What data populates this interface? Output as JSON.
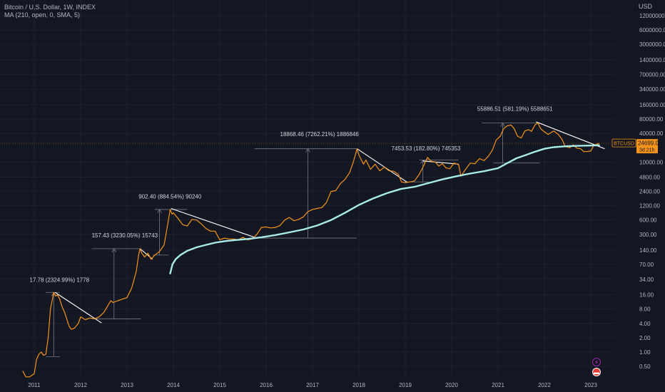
{
  "legend": {
    "title": "Bitcoin / U.S. Dollar, 1W, INDEX",
    "indicator": "MA (210, open, 0, SMA, 5)"
  },
  "price_axis": {
    "currency": "USD"
  },
  "symbol_label": {
    "symbol": "BTCUSD",
    "price": "24699.03",
    "countdown": "3d 21h"
  },
  "colors": {
    "background": "#131722",
    "price_line": "#f7931a",
    "ma_line": "#a8ece9",
    "trendline": "#ffffff",
    "measure": "#787b86",
    "axis_text": "#b2b5be",
    "grid": "#1e222d"
  },
  "badges": {
    "flash": "flash-icon",
    "flag": "flag-icon"
  },
  "chart_data": {
    "type": "line",
    "yscale": "log",
    "ylim": [
      0.3,
      20000000
    ],
    "xlim": [
      2010.8,
      2023.3
    ],
    "y_ticks": [
      {
        "v": 12000000,
        "label": "12000000.00"
      },
      {
        "v": 6000000,
        "label": "6000000.00"
      },
      {
        "v": 3000000,
        "label": "3000000.00"
      },
      {
        "v": 1400000,
        "label": "1400000.00"
      },
      {
        "v": 700000,
        "label": "700000.00"
      },
      {
        "v": 340000,
        "label": "340000.00"
      },
      {
        "v": 160000,
        "label": "160000.00"
      },
      {
        "v": 80000,
        "label": "80000.00"
      },
      {
        "v": 40000,
        "label": "40000.00"
      },
      {
        "v": 10000,
        "label": "10000.00"
      },
      {
        "v": 4800,
        "label": "4800.00"
      },
      {
        "v": 2400,
        "label": "2400.00"
      },
      {
        "v": 1200,
        "label": "1200.00"
      },
      {
        "v": 600,
        "label": "600.00"
      },
      {
        "v": 300,
        "label": "300.00"
      },
      {
        "v": 140,
        "label": "140.00"
      },
      {
        "v": 70,
        "label": "70.00"
      },
      {
        "v": 34,
        "label": "34.00"
      },
      {
        "v": 16,
        "label": "16.00"
      },
      {
        "v": 8,
        "label": "8.00"
      },
      {
        "v": 4,
        "label": "4.00"
      },
      {
        "v": 2,
        "label": "2.00"
      },
      {
        "v": 1,
        "label": "1.00"
      },
      {
        "v": 0.5,
        "label": "0.50"
      }
    ],
    "x_ticks": [
      {
        "v": 2011,
        "label": "2011"
      },
      {
        "v": 2012,
        "label": "2012"
      },
      {
        "v": 2013,
        "label": "2013"
      },
      {
        "v": 2014,
        "label": "2014"
      },
      {
        "v": 2015,
        "label": "2015"
      },
      {
        "v": 2016,
        "label": "2016"
      },
      {
        "v": 2017,
        "label": "2017"
      },
      {
        "v": 2018,
        "label": "2018"
      },
      {
        "v": 2019,
        "label": "2019"
      },
      {
        "v": 2020,
        "label": "2020"
      },
      {
        "v": 2021,
        "label": "2021"
      },
      {
        "v": 2022,
        "label": "2022"
      },
      {
        "v": 2023,
        "label": "2023"
      }
    ],
    "current_price": 24699.03,
    "series": [
      {
        "type": "price",
        "points": [
          [
            2010.75,
            0.4
          ],
          [
            2010.82,
            0.3
          ],
          [
            2010.9,
            0.3
          ],
          [
            2011.0,
            0.35
          ],
          [
            2011.05,
            0.7
          ],
          [
            2011.1,
            0.9
          ],
          [
            2011.15,
            1.0
          ],
          [
            2011.2,
            0.85
          ],
          [
            2011.25,
            0.9
          ],
          [
            2011.3,
            2.0
          ],
          [
            2011.35,
            8
          ],
          [
            2011.42,
            18
          ],
          [
            2011.46,
            15
          ],
          [
            2011.5,
            16
          ],
          [
            2011.55,
            13
          ],
          [
            2011.6,
            9
          ],
          [
            2011.65,
            7
          ],
          [
            2011.7,
            5
          ],
          [
            2011.75,
            3.5
          ],
          [
            2011.8,
            3.0
          ],
          [
            2011.87,
            3.2
          ],
          [
            2011.95,
            4.0
          ],
          [
            2012.0,
            5.5
          ],
          [
            2012.1,
            4.8
          ],
          [
            2012.2,
            5.2
          ],
          [
            2012.3,
            5.0
          ],
          [
            2012.4,
            5.5
          ],
          [
            2012.5,
            6.8
          ],
          [
            2012.6,
            10
          ],
          [
            2012.65,
            12
          ],
          [
            2012.7,
            11
          ],
          [
            2012.8,
            12
          ],
          [
            2012.9,
            13
          ],
          [
            2013.0,
            14
          ],
          [
            2013.1,
            22
          ],
          [
            2013.2,
            50
          ],
          [
            2013.25,
            110
          ],
          [
            2013.28,
            150
          ],
          [
            2013.32,
            120
          ],
          [
            2013.38,
            100
          ],
          [
            2013.45,
            120
          ],
          [
            2013.52,
            90
          ],
          [
            2013.6,
            110
          ],
          [
            2013.7,
            130
          ],
          [
            2013.8,
            180
          ],
          [
            2013.88,
            500
          ],
          [
            2013.93,
            1000
          ],
          [
            2013.97,
            800
          ],
          [
            2014.0,
            850
          ],
          [
            2014.1,
            650
          ],
          [
            2014.2,
            480
          ],
          [
            2014.3,
            450
          ],
          [
            2014.4,
            620
          ],
          [
            2014.5,
            600
          ],
          [
            2014.6,
            500
          ],
          [
            2014.7,
            400
          ],
          [
            2014.8,
            350
          ],
          [
            2014.9,
            350
          ],
          [
            2015.0,
            230
          ],
          [
            2015.1,
            250
          ],
          [
            2015.2,
            240
          ],
          [
            2015.3,
            240
          ],
          [
            2015.4,
            230
          ],
          [
            2015.5,
            260
          ],
          [
            2015.6,
            230
          ],
          [
            2015.7,
            240
          ],
          [
            2015.8,
            300
          ],
          [
            2015.9,
            420
          ],
          [
            2016.0,
            430
          ],
          [
            2016.1,
            410
          ],
          [
            2016.2,
            420
          ],
          [
            2016.3,
            460
          ],
          [
            2016.4,
            600
          ],
          [
            2016.5,
            680
          ],
          [
            2016.6,
            580
          ],
          [
            2016.7,
            620
          ],
          [
            2016.8,
            700
          ],
          [
            2016.9,
            900
          ],
          [
            2017.0,
            1000
          ],
          [
            2017.1,
            1050
          ],
          [
            2017.2,
            1100
          ],
          [
            2017.3,
            1400
          ],
          [
            2017.4,
            2400
          ],
          [
            2017.5,
            2500
          ],
          [
            2017.6,
            3500
          ],
          [
            2017.7,
            4300
          ],
          [
            2017.8,
            6000
          ],
          [
            2017.88,
            10000
          ],
          [
            2017.96,
            19000
          ],
          [
            2018.0,
            14000
          ],
          [
            2018.1,
            9000
          ],
          [
            2018.15,
            11000
          ],
          [
            2018.25,
            7000
          ],
          [
            2018.35,
            9000
          ],
          [
            2018.45,
            6500
          ],
          [
            2018.55,
            7800
          ],
          [
            2018.65,
            6500
          ],
          [
            2018.75,
            6400
          ],
          [
            2018.85,
            5500
          ],
          [
            2018.92,
            3800
          ],
          [
            2019.0,
            3700
          ],
          [
            2019.1,
            3800
          ],
          [
            2019.2,
            4000
          ],
          [
            2019.3,
            5500
          ],
          [
            2019.4,
            8500
          ],
          [
            2019.48,
            12500
          ],
          [
            2019.55,
            10500
          ],
          [
            2019.65,
            10000
          ],
          [
            2019.72,
            8200
          ],
          [
            2019.8,
            9200
          ],
          [
            2019.88,
            7500
          ],
          [
            2019.96,
            7200
          ],
          [
            2020.05,
            9500
          ],
          [
            2020.15,
            8800
          ],
          [
            2020.2,
            5000
          ],
          [
            2020.3,
            7000
          ],
          [
            2020.4,
            9500
          ],
          [
            2020.5,
            9200
          ],
          [
            2020.6,
            11800
          ],
          [
            2020.7,
            10700
          ],
          [
            2020.8,
            13500
          ],
          [
            2020.88,
            18000
          ],
          [
            2020.96,
            29000
          ],
          [
            2021.05,
            35000
          ],
          [
            2021.12,
            50000
          ],
          [
            2021.2,
            58000
          ],
          [
            2021.28,
            60000
          ],
          [
            2021.35,
            50000
          ],
          [
            2021.42,
            35000
          ],
          [
            2021.5,
            32000
          ],
          [
            2021.58,
            45000
          ],
          [
            2021.66,
            48000
          ],
          [
            2021.72,
            44000
          ],
          [
            2021.8,
            61000
          ],
          [
            2021.86,
            66000
          ],
          [
            2021.92,
            50000
          ],
          [
            2022.0,
            43000
          ],
          [
            2022.08,
            38000
          ],
          [
            2022.2,
            45000
          ],
          [
            2022.3,
            38000
          ],
          [
            2022.38,
            30000
          ],
          [
            2022.45,
            21000
          ],
          [
            2022.55,
            20000
          ],
          [
            2022.62,
            23000
          ],
          [
            2022.7,
            19500
          ],
          [
            2022.78,
            19000
          ],
          [
            2022.85,
            16500
          ],
          [
            2022.95,
            16700
          ],
          [
            2023.0,
            17000
          ],
          [
            2023.06,
            22000
          ],
          [
            2023.12,
            23500
          ],
          [
            2023.18,
            24699
          ]
        ]
      },
      {
        "type": "ma",
        "points": [
          [
            2013.93,
            45
          ],
          [
            2013.98,
            70
          ],
          [
            2014.05,
            90
          ],
          [
            2014.15,
            110
          ],
          [
            2014.3,
            135
          ],
          [
            2014.5,
            160
          ],
          [
            2014.7,
            180
          ],
          [
            2014.9,
            200
          ],
          [
            2015.1,
            215
          ],
          [
            2015.3,
            225
          ],
          [
            2015.6,
            240
          ],
          [
            2015.9,
            260
          ],
          [
            2016.2,
            290
          ],
          [
            2016.5,
            330
          ],
          [
            2016.8,
            380
          ],
          [
            2017.1,
            460
          ],
          [
            2017.4,
            600
          ],
          [
            2017.7,
            850
          ],
          [
            2018.0,
            1250
          ],
          [
            2018.3,
            1700
          ],
          [
            2018.6,
            2200
          ],
          [
            2018.9,
            2700
          ],
          [
            2019.2,
            3000
          ],
          [
            2019.5,
            3600
          ],
          [
            2019.8,
            4300
          ],
          [
            2020.1,
            5000
          ],
          [
            2020.4,
            5700
          ],
          [
            2020.7,
            6400
          ],
          [
            2021.0,
            7400
          ],
          [
            2021.2,
            9500
          ],
          [
            2021.4,
            12000
          ],
          [
            2021.6,
            14000
          ],
          [
            2021.8,
            16500
          ],
          [
            2022.0,
            19000
          ],
          [
            2022.2,
            20500
          ],
          [
            2022.5,
            21500
          ],
          [
            2022.8,
            22000
          ],
          [
            2023.0,
            22200
          ],
          [
            2023.18,
            22500
          ]
        ]
      }
    ],
    "trendlines": [
      [
        [
          2011.45,
          18
        ],
        [
          2012.45,
          4.1
        ]
      ],
      [
        [
          2013.28,
          150
        ],
        [
          2013.55,
          90
        ]
      ],
      [
        [
          2013.95,
          1050
        ],
        [
          2015.75,
          260
        ]
      ],
      [
        [
          2017.96,
          19000
        ],
        [
          2019.05,
          3700
        ]
      ],
      [
        [
          2019.38,
          10500
        ],
        [
          2020.15,
          9000
        ]
      ],
      [
        [
          2021.82,
          70000
        ],
        [
          2023.3,
          19000
        ]
      ]
    ],
    "measures": [
      {
        "label": "17.78 (2324.99%) 1778",
        "x": 2011.42,
        "from": 0.8,
        "to": 18,
        "label_x": 2010.9,
        "label_y": 30,
        "hline_low": [
          2011.25,
          2011.55
        ],
        "hline_high": [
          2011.25,
          2011.55
        ]
      },
      {
        "label": "157.43 (3230.05%) 15743",
        "x": 2012.72,
        "from": 5,
        "to": 150,
        "label_x": 2012.24,
        "label_y": 260,
        "hline_low": [
          2012.24,
          2013.3
        ],
        "hline_high": [
          2012.24,
          2013.3
        ]
      },
      {
        "label": "902.40 (884.54%) 90240",
        "x": 2013.7,
        "from": 110,
        "to": 1000,
        "label_x": 2013.25,
        "label_y": 1700,
        "hline_low": [
          2013.55,
          2013.9
        ],
        "hline_high": [
          2013.6,
          2014.3
        ]
      },
      {
        "label": "18868.46 (7262.21%) 1886846",
        "x": 2016.9,
        "from": 250,
        "to": 19000,
        "label_x": 2016.3,
        "label_y": 35000,
        "hline_low": [
          2015.75,
          2017.95
        ],
        "hline_high": [
          2015.75,
          2017.95
        ]
      },
      {
        "label": "7453.53 (182.80%) 745353",
        "x": 2019.38,
        "from": 3800,
        "to": 11000,
        "label_x": 2018.7,
        "label_y": 17500,
        "hline_low": [
          2019.0,
          2019.5
        ],
        "hline_high": [
          2019.3,
          2020.15
        ]
      },
      {
        "label": "55886.51 (581.19%) 5588651",
        "x": 2021.1,
        "from": 9500,
        "to": 66000,
        "label_x": 2020.55,
        "label_y": 120000,
        "hline_low": [
          2020.9,
          2021.9
        ],
        "hline_high": [
          2020.65,
          2021.9
        ]
      }
    ]
  }
}
